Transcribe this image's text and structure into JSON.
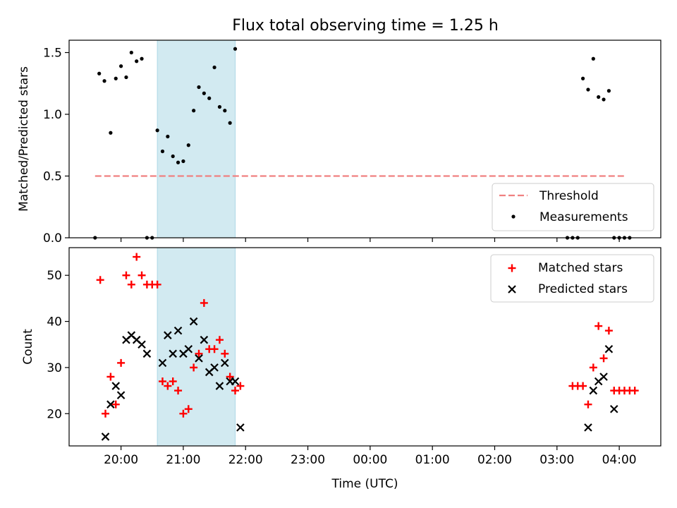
{
  "figure_title": "Flux total observing time = 1.25 h",
  "chart_data": [
    {
      "type": "scatter",
      "ylabel": "Matched/Predicted stars",
      "xlabel": "",
      "ylim": [
        0,
        1.6
      ],
      "yticks": [
        "0.0",
        "0.5",
        "1.0",
        "1.5"
      ],
      "threshold": {
        "name": "Threshold",
        "value": 0.5,
        "x_range": [
          "19:35",
          "04:05"
        ],
        "color": "#f08080"
      },
      "observing_window": {
        "start": "20:35",
        "end": "21:50",
        "color": "#add8e6"
      },
      "legend": {
        "placement": "lower-right",
        "entries": [
          "Threshold",
          "Measurements"
        ]
      },
      "series": [
        {
          "name": "Measurements",
          "color": "#000000",
          "points": [
            [
              "19:35",
              0.0
            ],
            [
              "19:39",
              1.33
            ],
            [
              "19:44",
              1.27
            ],
            [
              "19:50",
              0.85
            ],
            [
              "19:55",
              1.29
            ],
            [
              "20:00",
              1.39
            ],
            [
              "20:05",
              1.3
            ],
            [
              "20:10",
              1.5
            ],
            [
              "20:15",
              1.43
            ],
            [
              "20:20",
              1.45
            ],
            [
              "20:25",
              0.0
            ],
            [
              "20:30",
              0.0
            ],
            [
              "20:35",
              0.87
            ],
            [
              "20:40",
              0.7
            ],
            [
              "20:45",
              0.82
            ],
            [
              "20:50",
              0.66
            ],
            [
              "20:55",
              0.61
            ],
            [
              "21:00",
              0.62
            ],
            [
              "21:05",
              0.75
            ],
            [
              "21:10",
              1.03
            ],
            [
              "21:15",
              1.22
            ],
            [
              "21:20",
              1.17
            ],
            [
              "21:25",
              1.13
            ],
            [
              "21:30",
              1.38
            ],
            [
              "21:35",
              1.06
            ],
            [
              "21:40",
              1.03
            ],
            [
              "21:45",
              0.93
            ],
            [
              "21:50",
              1.53
            ],
            [
              "03:10",
              0.0
            ],
            [
              "03:15",
              0.0
            ],
            [
              "03:20",
              0.0
            ],
            [
              "03:25",
              1.29
            ],
            [
              "03:30",
              1.2
            ],
            [
              "03:35",
              1.45
            ],
            [
              "03:40",
              1.14
            ],
            [
              "03:45",
              1.12
            ],
            [
              "03:50",
              1.19
            ],
            [
              "03:55",
              0.0
            ],
            [
              "04:00",
              0.0
            ],
            [
              "04:05",
              0.0
            ],
            [
              "04:10",
              0.0
            ]
          ]
        }
      ]
    },
    {
      "type": "scatter",
      "ylabel": "Count",
      "xlabel": "Time (UTC)",
      "ylim": [
        13,
        56
      ],
      "yticks": [
        "20",
        "30",
        "40",
        "50"
      ],
      "xticks": [
        "20:00",
        "21:00",
        "22:00",
        "23:00",
        "00:00",
        "01:00",
        "02:00",
        "03:00",
        "04:00"
      ],
      "observing_window": {
        "start": "20:35",
        "end": "21:50",
        "color": "#add8e6"
      },
      "legend": {
        "placement": "upper-right",
        "entries": [
          "Matched stars",
          "Predicted stars"
        ]
      },
      "series": [
        {
          "name": "Matched stars",
          "marker": "plus",
          "color": "#ff0000",
          "points": [
            [
              "19:40",
              49
            ],
            [
              "19:45",
              20
            ],
            [
              "19:50",
              28
            ],
            [
              "19:55",
              22
            ],
            [
              "20:00",
              31
            ],
            [
              "20:05",
              50
            ],
            [
              "20:10",
              48
            ],
            [
              "20:15",
              54
            ],
            [
              "20:20",
              50
            ],
            [
              "20:25",
              48
            ],
            [
              "20:30",
              48
            ],
            [
              "20:35",
              48
            ],
            [
              "20:40",
              27
            ],
            [
              "20:45",
              26
            ],
            [
              "20:50",
              27
            ],
            [
              "20:55",
              25
            ],
            [
              "21:00",
              20
            ],
            [
              "21:05",
              21
            ],
            [
              "21:10",
              30
            ],
            [
              "21:15",
              33
            ],
            [
              "21:20",
              44
            ],
            [
              "21:25",
              34
            ],
            [
              "21:30",
              34
            ],
            [
              "21:35",
              36
            ],
            [
              "21:40",
              33
            ],
            [
              "21:45",
              28
            ],
            [
              "21:50",
              25
            ],
            [
              "21:55",
              26
            ],
            [
              "03:15",
              26
            ],
            [
              "03:20",
              26
            ],
            [
              "03:25",
              26
            ],
            [
              "03:30",
              22
            ],
            [
              "03:35",
              30
            ],
            [
              "03:40",
              39
            ],
            [
              "03:45",
              32
            ],
            [
              "03:50",
              38
            ],
            [
              "03:55",
              25
            ],
            [
              "04:00",
              25
            ],
            [
              "04:05",
              25
            ],
            [
              "04:10",
              25
            ],
            [
              "04:15",
              25
            ]
          ]
        },
        {
          "name": "Predicted stars",
          "marker": "x",
          "color": "#000000",
          "points": [
            [
              "19:45",
              15
            ],
            [
              "19:50",
              22
            ],
            [
              "19:55",
              26
            ],
            [
              "20:00",
              24
            ],
            [
              "20:05",
              36
            ],
            [
              "20:10",
              37
            ],
            [
              "20:15",
              36
            ],
            [
              "20:20",
              35
            ],
            [
              "20:25",
              33
            ],
            [
              "20:40",
              31
            ],
            [
              "20:45",
              37
            ],
            [
              "20:50",
              33
            ],
            [
              "20:55",
              38
            ],
            [
              "21:00",
              33
            ],
            [
              "21:05",
              34
            ],
            [
              "21:10",
              40
            ],
            [
              "21:15",
              32
            ],
            [
              "21:20",
              36
            ],
            [
              "21:25",
              29
            ],
            [
              "21:30",
              30
            ],
            [
              "21:35",
              26
            ],
            [
              "21:40",
              31
            ],
            [
              "21:45",
              27
            ],
            [
              "21:50",
              27
            ],
            [
              "21:55",
              17
            ],
            [
              "03:30",
              17
            ],
            [
              "03:35",
              25
            ],
            [
              "03:40",
              27
            ],
            [
              "03:45",
              28
            ],
            [
              "03:50",
              34
            ],
            [
              "03:55",
              21
            ]
          ]
        }
      ]
    }
  ]
}
